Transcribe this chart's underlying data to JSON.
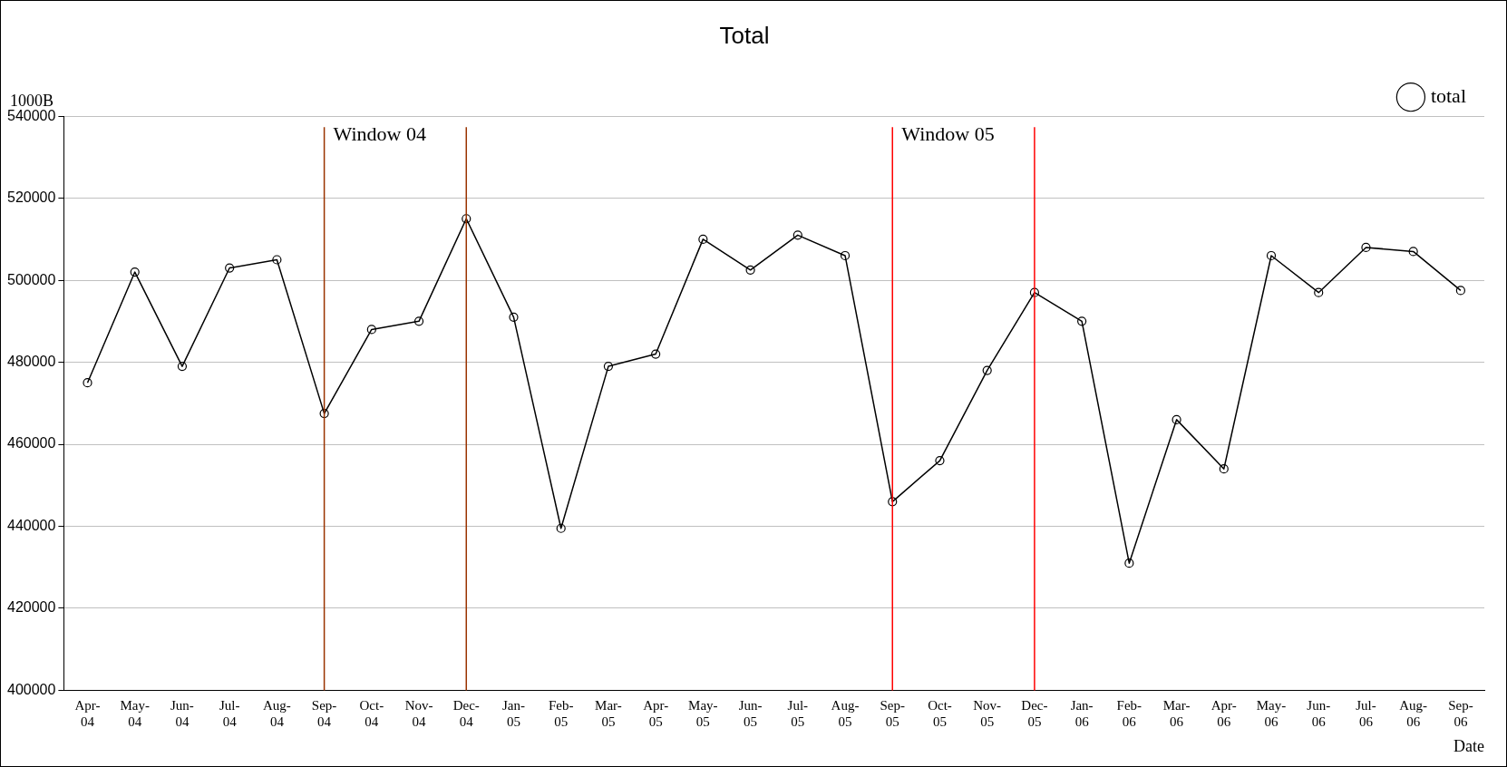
{
  "chart_data": {
    "type": "line",
    "title": "Total",
    "ylabel": "1000B",
    "xlabel": "Date",
    "categories": [
      "Apr-04",
      "May-04",
      "Jun-04",
      "Jul-04",
      "Aug-04",
      "Sep-04",
      "Oct-04",
      "Nov-04",
      "Dec-04",
      "Jan-05",
      "Feb-05",
      "Mar-05",
      "Apr-05",
      "May-05",
      "Jun-05",
      "Jul-05",
      "Aug-05",
      "Sep-05",
      "Oct-05",
      "Nov-05",
      "Dec-05",
      "Jan-06",
      "Feb-06",
      "Mar-06",
      "Apr-06",
      "May-06",
      "Jun-06",
      "Jul-06",
      "Aug-06",
      "Sep-06"
    ],
    "series": [
      {
        "name": "total",
        "color": "#000000",
        "values": [
          475000,
          502000,
          479000,
          503000,
          505000,
          467500,
          488000,
          490000,
          515000,
          491000,
          439500,
          479000,
          482000,
          510000,
          502500,
          511000,
          506000,
          446000,
          456000,
          478000,
          497000,
          490000,
          431000,
          466000,
          454000,
          506000,
          497000,
          508000,
          507000,
          497500
        ]
      }
    ],
    "ylim": [
      400000,
      540000
    ],
    "yticks": [
      400000,
      420000,
      440000,
      460000,
      480000,
      500000,
      520000,
      540000
    ],
    "grid": "y",
    "legend": "top right",
    "marker": "circle",
    "line_style": "solid",
    "ref_lines": [
      {
        "axis": "x",
        "value": "Sep-04",
        "label": "Window 04",
        "color": "#993300"
      },
      {
        "axis": "x",
        "value": "Dec-04",
        "label": null,
        "color": "#993300"
      },
      {
        "axis": "x",
        "value": "Sep-05",
        "label": "Window 05",
        "color": "#ff0000"
      },
      {
        "axis": "x",
        "value": "Dec-05",
        "label": null,
        "color": "#ff0000"
      }
    ]
  }
}
